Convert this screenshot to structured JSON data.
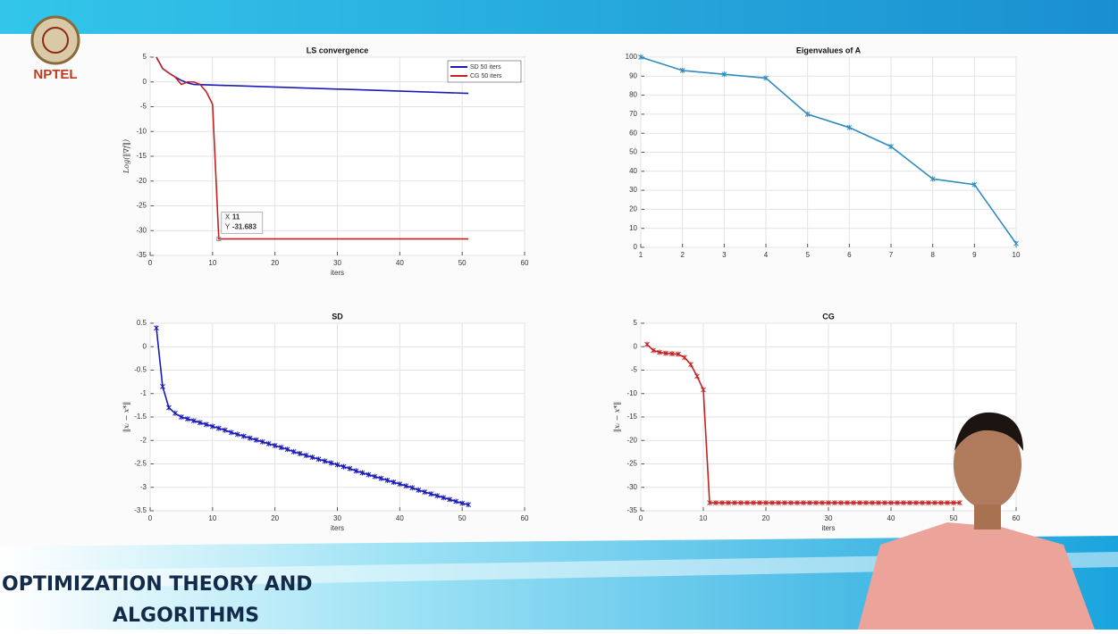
{
  "header": {
    "logo": "NPTEL"
  },
  "footer": {
    "title": [
      "OPTIMIZATION THEORY AND",
      "ALGORITHMS"
    ]
  },
  "chart_data": [
    {
      "type": "line",
      "title": "LS convergence",
      "xlabel": "iters",
      "ylabel": "Log(‖∇f‖)",
      "xlim": [
        0,
        60
      ],
      "xticks": [
        0,
        10,
        20,
        30,
        40,
        50,
        60
      ],
      "ylim": [
        -35,
        5
      ],
      "yticks": [
        5,
        0,
        -5,
        -10,
        -15,
        -20,
        -25,
        -30,
        -35
      ],
      "grid": true,
      "legend": "upper right",
      "marker": false,
      "series": [
        {
          "name": "SD 50 iters",
          "color": "#1a1ab8",
          "x": [
            1,
            2,
            3,
            4,
            5,
            6,
            7,
            51
          ],
          "values": [
            5,
            2.7,
            1.8,
            1,
            0.3,
            -0.2,
            -0.5,
            -2.3
          ]
        },
        {
          "name": "CG 50 iters",
          "color": "#c42222",
          "x": [
            1,
            2,
            3,
            4,
            5,
            6,
            7,
            8,
            9,
            10,
            11,
            51
          ],
          "values": [
            5,
            2.7,
            1.8,
            1,
            -0.5,
            0,
            0,
            -0.5,
            -2,
            -4.5,
            -31.683,
            -31.683
          ]
        }
      ],
      "annotation": {
        "x_label": "X",
        "x": 11,
        "y_label": "Y",
        "y": -31.683
      }
    },
    {
      "type": "line",
      "title": "Eigenvalues of A",
      "xlim": [
        1,
        10
      ],
      "xticks": [
        1,
        2,
        3,
        4,
        5,
        6,
        7,
        8,
        9,
        10
      ],
      "ylim": [
        0,
        100
      ],
      "yticks": [
        100,
        90,
        80,
        70,
        60,
        50,
        40,
        30,
        20,
        10,
        0
      ],
      "grid": true,
      "marker": true,
      "series": [
        {
          "color": "#2f8cbf",
          "x": [
            1,
            2,
            3,
            4,
            5,
            6,
            7,
            8,
            9,
            10
          ],
          "values": [
            100,
            93,
            91,
            89,
            70,
            63,
            53,
            36,
            33,
            2
          ]
        }
      ]
    },
    {
      "type": "line",
      "title": "SD",
      "xlabel": "iters",
      "ylabel": "‖xᵢ − x*‖",
      "xlim": [
        0,
        60
      ],
      "xticks": [
        0,
        10,
        20,
        30,
        40,
        50,
        60
      ],
      "ylim": [
        -3.5,
        0.5
      ],
      "yticks": [
        0.5,
        0,
        -0.5,
        -1,
        -1.5,
        -2,
        -2.5,
        -3,
        -3.5
      ],
      "grid": true,
      "marker": true,
      "series": [
        {
          "color": "#1a1ab8",
          "x": [
            1,
            2,
            3,
            4,
            5,
            6,
            7,
            8,
            9,
            10,
            11,
            12,
            13,
            14,
            15,
            16,
            17,
            18,
            19,
            20,
            21,
            22,
            23,
            24,
            25,
            26,
            27,
            28,
            29,
            30,
            31,
            32,
            33,
            34,
            35,
            36,
            37,
            38,
            39,
            40,
            41,
            42,
            43,
            44,
            45,
            46,
            47,
            48,
            49,
            50,
            51
          ],
          "values": [
            0.4,
            -0.85,
            -1.3,
            -1.42,
            -1.5,
            -1.54,
            -1.58,
            -1.62,
            -1.66,
            -1.7,
            -1.74,
            -1.78,
            -1.83,
            -1.87,
            -1.91,
            -1.95,
            -1.99,
            -2.03,
            -2.07,
            -2.11,
            -2.15,
            -2.19,
            -2.24,
            -2.28,
            -2.32,
            -2.36,
            -2.4,
            -2.44,
            -2.48,
            -2.52,
            -2.56,
            -2.6,
            -2.65,
            -2.69,
            -2.73,
            -2.77,
            -2.81,
            -2.85,
            -2.89,
            -2.93,
            -2.97,
            -3.01,
            -3.06,
            -3.1,
            -3.14,
            -3.18,
            -3.22,
            -3.26,
            -3.3,
            -3.34,
            -3.37
          ]
        }
      ]
    },
    {
      "type": "line",
      "title": "CG",
      "xlabel": "iters",
      "ylabel": "‖xᵢ − x*‖",
      "xlim": [
        0,
        60
      ],
      "xticks": [
        0,
        10,
        20,
        30,
        40,
        50,
        60
      ],
      "ylim": [
        -35,
        5
      ],
      "yticks": [
        5,
        0,
        -5,
        -10,
        -15,
        -20,
        -25,
        -30,
        -35
      ],
      "grid": true,
      "marker": true,
      "series": [
        {
          "color": "#c42222",
          "x": [
            1,
            2,
            3,
            4,
            5,
            6,
            7,
            8,
            9,
            10,
            11,
            12,
            13,
            14,
            15,
            16,
            17,
            18,
            19,
            20,
            21,
            22,
            23,
            24,
            25,
            26,
            27,
            28,
            29,
            30,
            31,
            32,
            33,
            34,
            35,
            36,
            37,
            38,
            39,
            40,
            41,
            42,
            43,
            44,
            45,
            46,
            47,
            48,
            49,
            50,
            51
          ],
          "values": [
            0.5,
            -0.8,
            -1.2,
            -1.4,
            -1.5,
            -1.6,
            -2.3,
            -3.8,
            -6.3,
            -9.2,
            -33.3,
            -33.3,
            -33.3,
            -33.3,
            -33.3,
            -33.3,
            -33.3,
            -33.3,
            -33.3,
            -33.3,
            -33.3,
            -33.3,
            -33.3,
            -33.3,
            -33.3,
            -33.3,
            -33.3,
            -33.3,
            -33.3,
            -33.3,
            -33.3,
            -33.3,
            -33.3,
            -33.3,
            -33.3,
            -33.3,
            -33.3,
            -33.3,
            -33.3,
            -33.3,
            -33.3,
            -33.3,
            -33.3,
            -33.3,
            -33.3,
            -33.3,
            -33.3,
            -33.3,
            -33.3,
            -33.3,
            -33.3
          ]
        }
      ]
    }
  ]
}
